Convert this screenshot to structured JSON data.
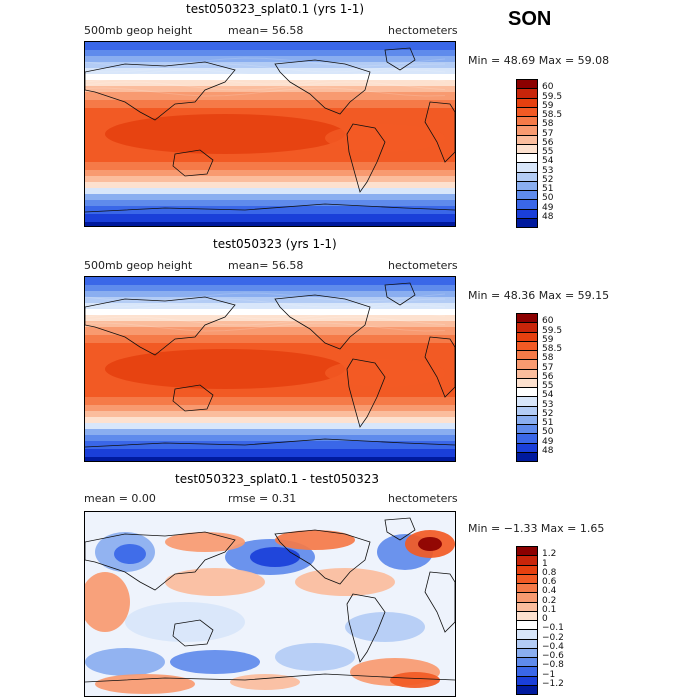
{
  "season": "SON",
  "panels": [
    {
      "title": "test050323_splat0.1 (yrs 1-1)",
      "left_label": "500mb geop height",
      "mid_label": "mean=   56.58",
      "units": "hectometers",
      "minmax": "Min =   48.69  Max =   59.08",
      "legend_labels": [
        "60",
        "59.5",
        "59",
        "58.5",
        "58",
        "57",
        "56",
        "55",
        "54",
        "53",
        "52",
        "51",
        "50",
        "49",
        "48"
      ],
      "legend_colors": [
        "#8b0000",
        "#c8250a",
        "#e6400f",
        "#f25a24",
        "#f57a48",
        "#f89a70",
        "#fbbd9d",
        "#fde1cf",
        "#ffffff",
        "#d8e6fa",
        "#b3ccf5",
        "#8aaef0",
        "#5f8bec",
        "#3a67e8",
        "#1a3fd9",
        "#001a9e"
      ]
    },
    {
      "title": "test050323 (yrs 1-1)",
      "left_label": "500mb geop height",
      "mid_label": "mean=   56.58",
      "units": "hectometers",
      "minmax": "Min =   48.36  Max =   59.15",
      "legend_labels": [
        "60",
        "59.5",
        "59",
        "58.5",
        "58",
        "57",
        "56",
        "55",
        "54",
        "53",
        "52",
        "51",
        "50",
        "49",
        "48"
      ],
      "legend_colors": [
        "#8b0000",
        "#c8250a",
        "#e6400f",
        "#f25a24",
        "#f57a48",
        "#f89a70",
        "#fbbd9d",
        "#fde1cf",
        "#ffffff",
        "#d8e6fa",
        "#b3ccf5",
        "#8aaef0",
        "#5f8bec",
        "#3a67e8",
        "#1a3fd9",
        "#001a9e"
      ]
    },
    {
      "title": "test050323_splat0.1 - test050323",
      "left_label": "mean =     0.00",
      "mid_label": "rmse =     0.31",
      "units": "hectometers",
      "minmax": "Min =   −1.33  Max =    1.65",
      "legend_labels": [
        "1.2",
        "1",
        "0.8",
        "0.6",
        "0.4",
        "0.2",
        "0.1",
        "0",
        "−0.1",
        "−0.2",
        "−0.4",
        "−0.6",
        "−0.8",
        "−1",
        "−1.2"
      ],
      "legend_colors": [
        "#8b0000",
        "#c8250a",
        "#e6400f",
        "#f25a24",
        "#f57a48",
        "#f89a70",
        "#fbbd9d",
        "#fde1cf",
        "#ffffff",
        "#d8e6fa",
        "#b3ccf5",
        "#8aaef0",
        "#5f8bec",
        "#3a67e8",
        "#1a3fd9",
        "#001a9e"
      ]
    }
  ],
  "chart_data": [
    {
      "type": "heatmap",
      "title": "test050323_splat0.1 (yrs 1-1)",
      "variable": "500mb geop height",
      "units": "hectometers",
      "mean": 56.58,
      "min": 48.69,
      "max": 59.08,
      "colorbar_levels": [
        48,
        49,
        50,
        51,
        52,
        53,
        54,
        55,
        56,
        57,
        58,
        58.5,
        59,
        59.5,
        60
      ]
    },
    {
      "type": "heatmap",
      "title": "test050323 (yrs 1-1)",
      "variable": "500mb geop height",
      "units": "hectometers",
      "mean": 56.58,
      "min": 48.36,
      "max": 59.15,
      "colorbar_levels": [
        48,
        49,
        50,
        51,
        52,
        53,
        54,
        55,
        56,
        57,
        58,
        58.5,
        59,
        59.5,
        60
      ]
    },
    {
      "type": "heatmap",
      "title": "test050323_splat0.1 - test050323",
      "units": "hectometers",
      "mean": 0.0,
      "rmse": 0.31,
      "min": -1.33,
      "max": 1.65,
      "colorbar_levels": [
        -1.2,
        -1,
        -0.8,
        -0.6,
        -0.4,
        -0.2,
        -0.1,
        0,
        0.1,
        0.2,
        0.4,
        0.6,
        0.8,
        1,
        1.2
      ]
    }
  ]
}
